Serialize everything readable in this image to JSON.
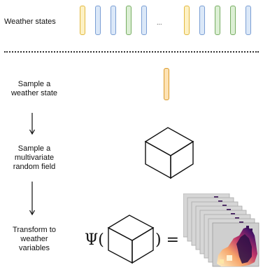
{
  "labels": {
    "weather_states": "Weather states",
    "sample_state": "Sample a\nweather state",
    "sample_field": "Sample a\nmultivariate\nrandom field",
    "transform": "Transform to\nweather\nvariables"
  },
  "ellipsis": "...",
  "formula": {
    "psi": "Ψ(",
    "close_eq": ") ="
  },
  "colors": {
    "yellow_fill": "#fdf1c4",
    "yellow_stroke": "#e2b83f",
    "blue_fill": "#dbe8f8",
    "blue_stroke": "#7a9ed4",
    "green_fill": "#dcefd4",
    "green_stroke": "#77ad62",
    "orange_fill": "#fde2b3",
    "orange_stroke": "#d99a2b"
  },
  "state_sequence_left": [
    "yellow",
    "blue",
    "blue",
    "green",
    "blue"
  ],
  "state_sequence_right": [
    "yellow",
    "blue",
    "green",
    "green",
    "blue"
  ]
}
